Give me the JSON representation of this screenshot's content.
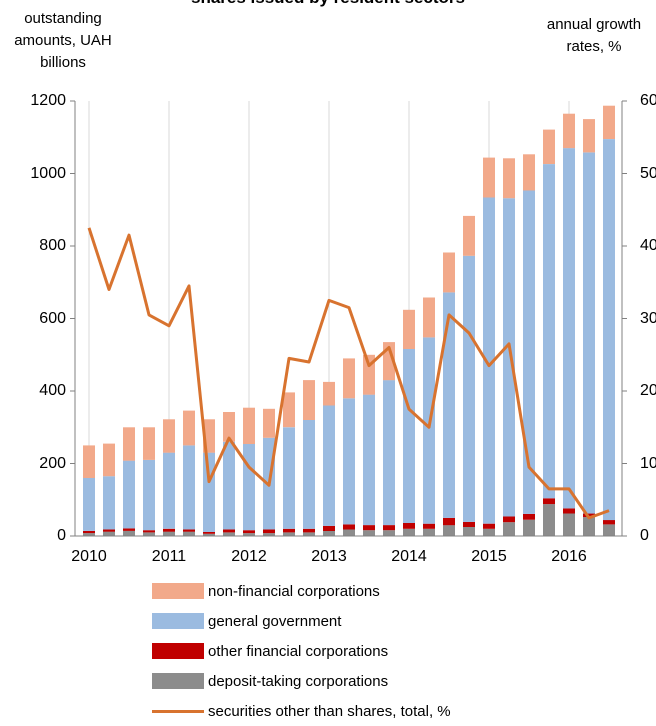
{
  "chart_data": {
    "type": "bar",
    "title": "shares issued by resident sectors",
    "ylabel_left": "outstanding amounts, UAH billions",
    "ylabel_right": "annual growth rates, %",
    "ylim_left": [
      0,
      1200
    ],
    "ylim_right": [
      0,
      60
    ],
    "yticks_left": [
      "0",
      "200",
      "400",
      "600",
      "800",
      "1000",
      "1200"
    ],
    "yticks_right": [
      "0",
      "10",
      "20",
      "30",
      "40",
      "50",
      "60"
    ],
    "xticks": [
      "2010",
      "2011",
      "2012",
      "2013",
      "2014",
      "2015",
      "2016"
    ],
    "grid": "vertical",
    "legend_position": "bottom",
    "stacked": true,
    "x": [
      "2010Q1",
      "2010Q2",
      "2010Q3",
      "2010Q4",
      "2011Q1",
      "2011Q2",
      "2011Q3",
      "2011Q4",
      "2012Q1",
      "2012Q2",
      "2012Q3",
      "2012Q4",
      "2013Q1",
      "2013Q2",
      "2013Q3",
      "2013Q4",
      "2014Q1",
      "2014Q2",
      "2014Q3",
      "2014Q4",
      "2015Q1",
      "2015Q2",
      "2015Q3",
      "2015Q4",
      "2016Q1",
      "2016Q2",
      "2016Q3"
    ],
    "series": [
      {
        "name": "deposit-taking corporations",
        "kind": "bar",
        "color": "#8c8c8c",
        "values": [
          8,
          12,
          14,
          10,
          12,
          12,
          6,
          10,
          8,
          8,
          10,
          10,
          14,
          18,
          16,
          16,
          20,
          20,
          30,
          25,
          20,
          38,
          45,
          88,
          62,
          52,
          32
        ]
      },
      {
        "name": "other financial corporations",
        "kind": "bar",
        "color": "#c00000",
        "values": [
          6,
          6,
          7,
          6,
          8,
          6,
          5,
          8,
          8,
          10,
          10,
          10,
          14,
          14,
          14,
          14,
          16,
          14,
          20,
          14,
          14,
          16,
          16,
          16,
          14,
          10,
          12
        ]
      },
      {
        "name": "general government",
        "kind": "bar",
        "color": "#9bbbe0",
        "values": [
          146,
          147,
          187,
          194,
          210,
          232,
          219,
          242,
          238,
          253,
          280,
          300,
          332,
          348,
          360,
          400,
          480,
          514,
          622,
          734,
          900,
          878,
          892,
          922,
          994,
          996,
          1051
        ]
      },
      {
        "name": "non-financial corporations",
        "kind": "bar",
        "color": "#f2a98a",
        "values": [
          90,
          90,
          92,
          90,
          92,
          96,
          92,
          82,
          100,
          80,
          96,
          110,
          65,
          110,
          110,
          105,
          108,
          110,
          110,
          110,
          110,
          110,
          100,
          95,
          95,
          92,
          92
        ]
      },
      {
        "name": "securities other than shares, total, %",
        "kind": "line",
        "axis": "right",
        "color": "#d8732f",
        "values": [
          42.5,
          34,
          41.5,
          30.5,
          29,
          34.5,
          7.5,
          13.5,
          9.5,
          7,
          24.5,
          24,
          32.5,
          31.5,
          23.5,
          26,
          17.5,
          15,
          30.5,
          28,
          23.5,
          26.5,
          9.5,
          6.5,
          6.5,
          2.5,
          3.5
        ]
      }
    ]
  }
}
